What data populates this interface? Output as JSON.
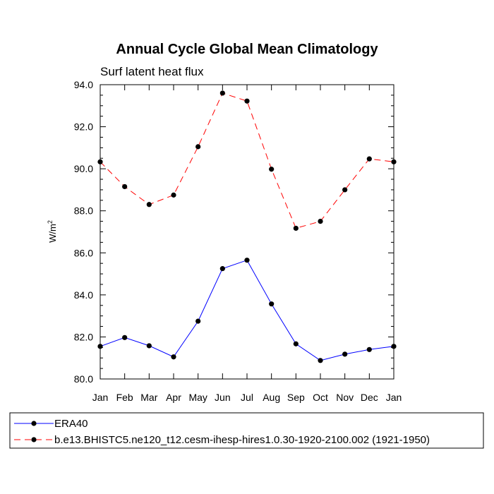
{
  "chart_data": {
    "type": "line",
    "title": "Annual Cycle Global Mean Climatology",
    "subtitle": "Surf latent heat flux",
    "ylabel": "W/m",
    "ylabel_sup": "2",
    "xlabel": "",
    "categories": [
      "Jan",
      "Feb",
      "Mar",
      "Apr",
      "May",
      "Jun",
      "Jul",
      "Aug",
      "Sep",
      "Oct",
      "Nov",
      "Dec",
      "Jan"
    ],
    "ylim": [
      80.0,
      94.0
    ],
    "yticks": [
      "80.0",
      "82.0",
      "84.0",
      "86.0",
      "88.0",
      "90.0",
      "92.0",
      "94.0"
    ],
    "ytick_values": [
      80,
      82,
      84,
      86,
      88,
      90,
      92,
      94
    ],
    "series": [
      {
        "name": "ERA40",
        "color": "#0000ff",
        "dash": "solid",
        "values": [
          81.55,
          81.97,
          81.58,
          81.05,
          82.75,
          85.25,
          85.65,
          83.57,
          81.67,
          80.88,
          81.18,
          81.4,
          81.55
        ]
      },
      {
        "name": "b.e13.BHISTC5.ne120_t12.cesm-ihesp-hires1.0.30-1920-2100.002 (1921-1950)",
        "color": "#ff0000",
        "dash": "dashed",
        "values": [
          90.33,
          89.15,
          88.3,
          88.75,
          91.05,
          93.6,
          93.22,
          89.98,
          87.17,
          87.5,
          89.0,
          90.47,
          90.33
        ]
      }
    ],
    "legend": "bottom"
  }
}
